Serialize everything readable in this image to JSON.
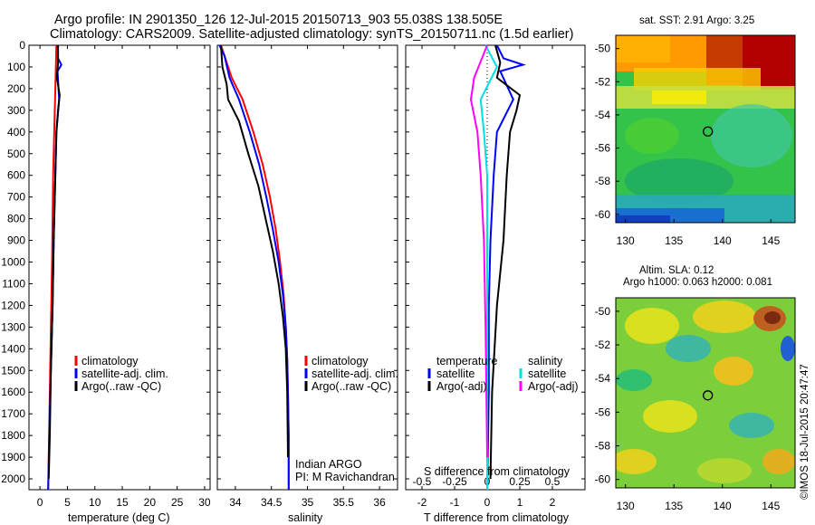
{
  "header": {
    "title_line1": "Argo profile: IN 2901350_126 12-Jul-2015 20150713_903 55.038S 138.505E",
    "title_line2": "Climatology: CARS2009. Satellite-adjusted climatology: synTS_20150711.nc (1.5d earlier)"
  },
  "colors": {
    "climatology": "#ff0000",
    "satellite": "#0000ff",
    "argo": "#000000",
    "salinity_satellite": "#00e0e0",
    "salinity_argo_adj": "#ff00ff"
  },
  "panels": {
    "temperature": {
      "xlabel": "temperature (deg C)",
      "legend": [
        "climatology",
        "satellite-adj. clim.",
        "Argo(..raw -QC)"
      ]
    },
    "salinity": {
      "xlabel": "salinity",
      "legend": [
        "climatology",
        "satellite-adj. clim.",
        "Argo(..raw -QC)"
      ],
      "note_line1": "Indian ARGO",
      "note_line2": "PI: M Ravichandran"
    },
    "difference": {
      "xlabel_top": "S difference from climatology",
      "xlabel_bottom": "T difference from climatology",
      "legend_temperature_title": "temperature",
      "legend_salinity_title": "salinity",
      "legend_t_sat": "satellite",
      "legend_t_argo": "Argo(-adj)",
      "legend_s_sat": "satellite",
      "legend_s_argo": "Argo(-adj)"
    },
    "sst_map": {
      "title": "sat. SST: 2.91  Argo: 3.25"
    },
    "sla_map": {
      "title_line1": "Altim. SLA: 0.12",
      "title_line2": "Argo h1000: 0.063 h2000: 0.081"
    }
  },
  "credit": "©IMOS 18-Jul-2015 20:47:47",
  "chart_data": [
    {
      "type": "line",
      "title": "",
      "xlabel": "temperature (deg C)",
      "ylabel": "",
      "xlim": [
        -2,
        31
      ],
      "ylim": [
        2050,
        0
      ],
      "xticks": [
        0,
        5,
        10,
        15,
        20,
        25,
        30
      ],
      "yticks": [
        0,
        100,
        200,
        300,
        400,
        500,
        600,
        700,
        800,
        900,
        1000,
        1100,
        1200,
        1300,
        1400,
        1500,
        1600,
        1700,
        1800,
        1900,
        2000
      ],
      "series": [
        {
          "name": "climatology",
          "color": "#ff0000",
          "x": [
            3.0,
            2.9,
            2.8,
            2.6,
            2.4,
            2.3,
            2.2,
            2.0,
            1.8,
            1.6,
            1.5
          ],
          "y": [
            0,
            100,
            200,
            400,
            600,
            800,
            1000,
            1300,
            1600,
            1900,
            2050
          ]
        },
        {
          "name": "satellite-adj. clim.",
          "color": "#0000ff",
          "x": [
            3.3,
            3.3,
            3.9,
            3.2,
            3.5,
            3.0,
            2.8,
            2.5,
            2.3,
            2.0,
            1.7,
            1.5
          ],
          "y": [
            0,
            60,
            90,
            120,
            250,
            400,
            600,
            900,
            1200,
            1500,
            1800,
            2050
          ]
        },
        {
          "name": "Argo(..raw -QC)",
          "color": "#000000",
          "x": [
            3.25,
            3.3,
            3.1,
            3.6,
            3.3,
            3.0,
            2.8,
            2.5,
            2.3,
            2.0,
            1.8,
            1.6
          ],
          "y": [
            0,
            80,
            150,
            230,
            300,
            400,
            600,
            900,
            1200,
            1500,
            1800,
            2000
          ]
        }
      ]
    },
    {
      "type": "line",
      "title": "",
      "xlabel": "salinity",
      "ylabel": "",
      "xlim": [
        33.75,
        36.25
      ],
      "ylim": [
        2050,
        0
      ],
      "xticks": [
        34,
        34.5,
        35,
        35.5,
        36
      ],
      "xticklabels": [
        "34",
        "34.5",
        "35",
        "35.5",
        "36"
      ],
      "series": [
        {
          "name": "climatology",
          "color": "#ff0000",
          "x": [
            33.8,
            33.85,
            33.95,
            34.1,
            34.25,
            34.38,
            34.48,
            34.56,
            34.62,
            34.67,
            34.7,
            34.72,
            34.73,
            34.74,
            34.74
          ],
          "y": [
            0,
            50,
            150,
            250,
            400,
            550,
            700,
            850,
            1000,
            1150,
            1300,
            1450,
            1600,
            1800,
            2050
          ]
        },
        {
          "name": "satellite-adj. clim.",
          "color": "#0000ff",
          "x": [
            33.78,
            33.85,
            33.92,
            34.05,
            34.2,
            34.33,
            34.43,
            34.52,
            34.6,
            34.66,
            34.7,
            34.72,
            34.73,
            34.74,
            34.74
          ],
          "y": [
            0,
            50,
            150,
            250,
            400,
            550,
            700,
            850,
            1000,
            1150,
            1300,
            1450,
            1600,
            1800,
            2050
          ]
        },
        {
          "name": "Argo(..raw -QC)",
          "color": "#000000",
          "x": [
            33.8,
            33.82,
            33.88,
            33.9,
            34.05,
            34.18,
            34.32,
            34.42,
            34.52,
            34.6,
            34.66,
            34.7,
            34.72,
            34.73
          ],
          "y": [
            0,
            100,
            180,
            250,
            350,
            500,
            650,
            800,
            950,
            1100,
            1250,
            1400,
            1600,
            1900
          ]
        }
      ]
    },
    {
      "type": "line",
      "title": "",
      "xlabel": "T difference from climatology",
      "xlabel_top": "S difference from climatology",
      "xlim": [
        -2.5,
        3
      ],
      "ylim": [
        2050,
        0
      ],
      "xticks": [
        -2,
        -1,
        0,
        1,
        2
      ],
      "xticklabels_top": [
        "-0.5",
        "-0.25",
        "0",
        "0.25",
        "0.5"
      ],
      "series": [
        {
          "name": "satellite",
          "group": "temperature",
          "color": "#0000ff",
          "x": [
            0.3,
            0.5,
            1.1,
            0.4,
            0.8,
            0.3,
            0.2,
            0.1,
            0.05,
            0.05,
            0.0
          ],
          "y": [
            0,
            60,
            90,
            120,
            250,
            400,
            600,
            900,
            1200,
            1600,
            2050
          ]
        },
        {
          "name": "Argo(-adj)",
          "group": "temperature",
          "color": "#000000",
          "x": [
            0.25,
            0.4,
            0.3,
            1.0,
            0.9,
            0.7,
            0.6,
            0.5,
            0.3,
            0.15,
            0.1
          ],
          "y": [
            0,
            80,
            150,
            230,
            300,
            400,
            600,
            900,
            1200,
            1600,
            2000
          ]
        },
        {
          "name": "satellite",
          "group": "salinity",
          "color": "#00e0e0",
          "x": [
            -0.05,
            0.3,
            -0.2,
            -0.1,
            0.0,
            0.0,
            0.0,
            0.0
          ],
          "y": [
            0,
            100,
            250,
            400,
            600,
            900,
            1400,
            2050
          ]
        },
        {
          "name": "Argo(-adj)",
          "group": "salinity",
          "color": "#ff00ff",
          "x": [
            0.0,
            -0.4,
            -0.5,
            -0.3,
            -0.2,
            -0.1,
            -0.05,
            0.0
          ],
          "y": [
            0,
            150,
            250,
            400,
            600,
            900,
            1300,
            1900
          ]
        }
      ]
    },
    {
      "type": "heatmap",
      "title": "sat. SST: 2.91  Argo: 3.25",
      "xlim": [
        129,
        147.5
      ],
      "ylim": [
        -60.5,
        -49.2
      ],
      "xticks": [
        130,
        135,
        140,
        145
      ],
      "yticks": [
        -50,
        -52,
        -54,
        -56,
        -58,
        -60
      ],
      "marker": {
        "lon": 138.5,
        "lat": -55.0
      }
    },
    {
      "type": "heatmap",
      "title": "Altim. SLA: 0.12 / Argo h1000: 0.063 h2000: 0.081",
      "xlim": [
        129,
        147.5
      ],
      "ylim": [
        -60.5,
        -49.2
      ],
      "xticks": [
        130,
        135,
        140,
        145
      ],
      "yticks": [
        -50,
        -52,
        -54,
        -56,
        -58,
        -60
      ],
      "marker": {
        "lon": 138.5,
        "lat": -55.0
      }
    }
  ]
}
